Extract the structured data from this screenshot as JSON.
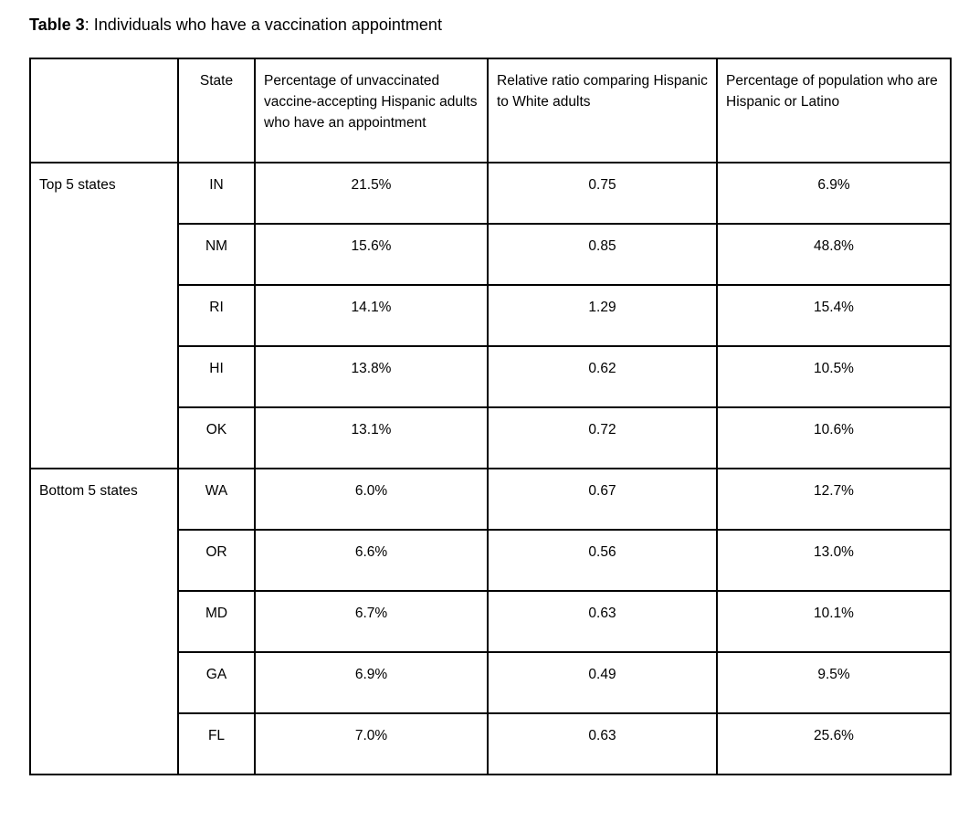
{
  "caption": {
    "label": "Table 3",
    "text": ": Individuals who have a vaccination appointment"
  },
  "table": {
    "headers": [
      "",
      "State",
      "Percentage of unvaccinated vaccine-accepting Hispanic adults who have an appointment",
      "Relative ratio comparing Hispanic to White adults",
      "Percentage of population who are Hispanic or Latino"
    ],
    "groups": [
      {
        "label": "Top 5 states",
        "rows": [
          [
            "IN",
            "21.5%",
            "0.75",
            "6.9%"
          ],
          [
            "NM",
            "15.6%",
            "0.85",
            "48.8%"
          ],
          [
            "RI",
            "14.1%",
            "1.29",
            "15.4%"
          ],
          [
            "HI",
            "13.8%",
            "0.62",
            "10.5%"
          ],
          [
            "OK",
            "13.1%",
            "0.72",
            "10.6%"
          ]
        ]
      },
      {
        "label": "Bottom 5 states",
        "rows": [
          [
            "WA",
            "6.0%",
            "0.67",
            "12.7%"
          ],
          [
            "OR",
            "6.6%",
            "0.56",
            "13.0%"
          ],
          [
            "MD",
            "6.7%",
            "0.63",
            "10.1%"
          ],
          [
            "GA",
            "6.9%",
            "0.49",
            "9.5%"
          ],
          [
            "FL",
            "7.0%",
            "0.63",
            "25.6%"
          ]
        ]
      }
    ]
  }
}
